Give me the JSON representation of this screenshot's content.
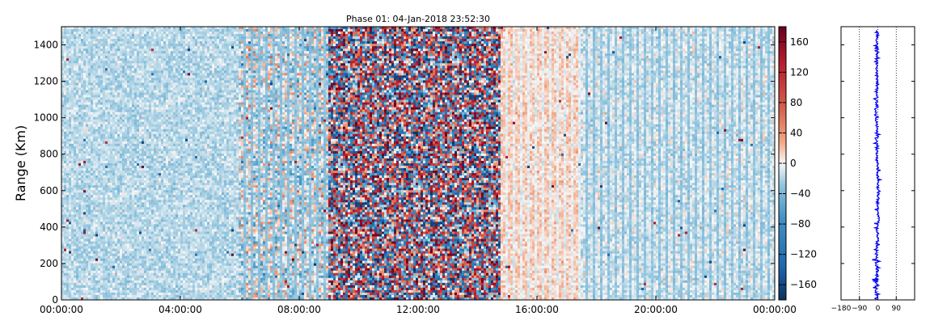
{
  "chart_data": [
    {
      "type": "heatmap",
      "title": "Phase 01: 04-Jan-2018 23:52:30",
      "ylabel": "Range (Km)",
      "xlabel": "",
      "x_ticks": [
        "00:00:00",
        "04:00:00",
        "08:00:00",
        "12:00:00",
        "16:00:00",
        "20:00:00",
        "00:00:00"
      ],
      "xlim_hours": [
        0,
        24
      ],
      "ylim": [
        0,
        1500
      ],
      "y_ticks": [
        0,
        200,
        400,
        600,
        800,
        1000,
        1200,
        1400
      ],
      "colorbar": {
        "colormap": "RdBu_r",
        "range": [
          -180,
          180
        ],
        "ticks": [
          -160,
          -120,
          -80,
          -40,
          0,
          40,
          80,
          120,
          160
        ],
        "low_color": "#0b305f",
        "mid_color": "#f7f7f7",
        "high_color": "#67001f"
      },
      "time_segments": [
        {
          "start_h": 0,
          "end_h": 6.0,
          "mean_phase": -18,
          "spread": 10,
          "note_color": "#d1e5f0"
        },
        {
          "start_h": 6.0,
          "end_h": 9.0,
          "mean_phase": -12,
          "spread": 30
        },
        {
          "start_h": 9.0,
          "end_h": 14.8,
          "mean_phase": 0,
          "spread": 170
        },
        {
          "start_h": 14.8,
          "end_h": 17.5,
          "mean_phase": 14,
          "spread": 10
        },
        {
          "start_h": 17.5,
          "end_h": 24,
          "mean_phase": -10,
          "spread": 12
        }
      ]
    },
    {
      "type": "line",
      "title": "",
      "xlabel": "",
      "ylabel": "",
      "xlim": [
        -180,
        180
      ],
      "ylim": [
        0,
        1500
      ],
      "x_ticks": [
        -180,
        -90,
        0,
        90
      ],
      "x_tick_labels": [
        "−180",
        "−90",
        "0",
        "90"
      ],
      "reference_lines_x": [
        -90,
        0,
        90
      ],
      "series": [
        {
          "color": "#0000ff",
          "profile_mean": [
            [
              0,
              -5
            ],
            [
              100,
              -4
            ],
            [
              200,
              -6
            ],
            [
              300,
              -3
            ],
            [
              400,
              -2
            ],
            [
              450,
              5
            ],
            [
              500,
              0
            ],
            [
              600,
              2
            ],
            [
              700,
              -3
            ],
            [
              800,
              -5
            ],
            [
              900,
              -4
            ],
            [
              1000,
              -8
            ],
            [
              1100,
              -6
            ],
            [
              1200,
              -5
            ],
            [
              1300,
              -7
            ],
            [
              1400,
              -4
            ],
            [
              1480,
              -3
            ]
          ]
        }
      ]
    }
  ]
}
